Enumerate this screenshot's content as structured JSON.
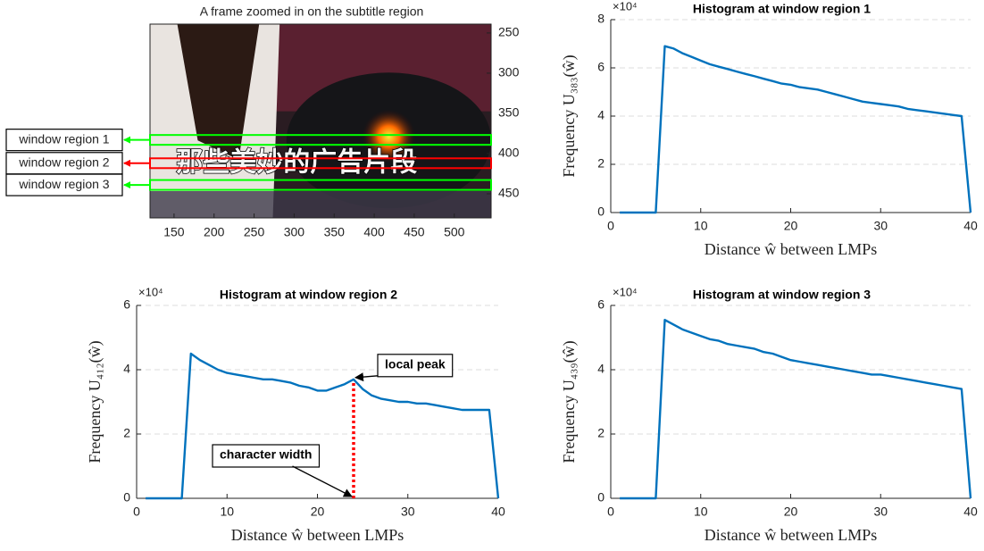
{
  "chart_data": [
    {
      "type": "image",
      "title": "A frame zoomed in on the subtitle region",
      "subtitle_text": "那些美妙的广告片段",
      "xlim": [
        120,
        546
      ],
      "ylim": [
        239,
        480
      ],
      "xticks": [
        150,
        200,
        250,
        300,
        350,
        400,
        450,
        500
      ],
      "yticks": [
        250,
        300,
        350,
        400,
        450
      ],
      "windows": [
        {
          "label": "window region 1",
          "y": 383,
          "color": "#00ff00"
        },
        {
          "label": "window region 2",
          "y": 412,
          "color": "#ff0000"
        },
        {
          "label": "window region 3",
          "y": 439,
          "color": "#00ff00"
        }
      ]
    },
    {
      "type": "line",
      "title": "Histogram at window region 1",
      "xlabel": "Distance ŵ between LMPs",
      "ylabel": "Frequency U₃₈₃(ŵ)",
      "y_multiplier": "×10⁴",
      "color": "#0072bd",
      "grid": true,
      "xlim": [
        0,
        40
      ],
      "ylim": [
        0,
        8
      ],
      "xticks": [
        0,
        10,
        20,
        30,
        40
      ],
      "yticks": [
        0,
        2,
        4,
        6,
        8
      ],
      "x": [
        1,
        2,
        3,
        4,
        5,
        6,
        7,
        8,
        9,
        10,
        11,
        12,
        13,
        14,
        15,
        16,
        17,
        18,
        19,
        20,
        21,
        22,
        23,
        24,
        25,
        26,
        27,
        28,
        29,
        30,
        31,
        32,
        33,
        34,
        35,
        36,
        37,
        38,
        39,
        40
      ],
      "values": [
        0,
        0,
        0,
        0,
        0,
        6.9,
        6.8,
        6.6,
        6.45,
        6.3,
        6.15,
        6.05,
        5.95,
        5.85,
        5.75,
        5.65,
        5.55,
        5.45,
        5.35,
        5.3,
        5.2,
        5.15,
        5.1,
        5.0,
        4.9,
        4.8,
        4.7,
        4.6,
        4.55,
        4.5,
        4.45,
        4.4,
        4.3,
        4.25,
        4.2,
        4.15,
        4.1,
        4.05,
        4.0,
        0
      ]
    },
    {
      "type": "line",
      "title": "Histogram at window region 2",
      "xlabel": "Distance ŵ between LMPs",
      "ylabel": "Frequency U₄₁₂(ŵ)",
      "y_multiplier": "×10⁴",
      "color": "#0072bd",
      "grid": true,
      "xlim": [
        0,
        40
      ],
      "ylim": [
        0,
        6
      ],
      "xticks": [
        0,
        10,
        20,
        30,
        40
      ],
      "yticks": [
        0,
        2,
        4,
        6
      ],
      "x": [
        1,
        2,
        3,
        4,
        5,
        6,
        7,
        8,
        9,
        10,
        11,
        12,
        13,
        14,
        15,
        16,
        17,
        18,
        19,
        20,
        21,
        22,
        23,
        24,
        25,
        26,
        27,
        28,
        29,
        30,
        31,
        32,
        33,
        34,
        35,
        36,
        37,
        38,
        39,
        40
      ],
      "values": [
        0,
        0,
        0,
        0,
        0,
        4.5,
        4.3,
        4.15,
        4.0,
        3.9,
        3.85,
        3.8,
        3.75,
        3.7,
        3.7,
        3.65,
        3.6,
        3.5,
        3.45,
        3.35,
        3.35,
        3.45,
        3.55,
        3.7,
        3.4,
        3.2,
        3.1,
        3.05,
        3.0,
        3.0,
        2.95,
        2.95,
        2.9,
        2.85,
        2.8,
        2.75,
        2.75,
        2.75,
        2.75,
        0
      ],
      "highlight_x": 24,
      "highlight_color": "#ff0000",
      "annotations": [
        "local peak",
        "character width"
      ]
    },
    {
      "type": "line",
      "title": "Histogram at window region 3",
      "xlabel": "Distance ŵ between LMPs",
      "ylabel": "Frequency U₄₃₉(ŵ)",
      "y_multiplier": "×10⁴",
      "color": "#0072bd",
      "grid": true,
      "xlim": [
        0,
        40
      ],
      "ylim": [
        0,
        6
      ],
      "xticks": [
        0,
        10,
        20,
        30,
        40
      ],
      "yticks": [
        0,
        2,
        4,
        6
      ],
      "x": [
        1,
        2,
        3,
        4,
        5,
        6,
        7,
        8,
        9,
        10,
        11,
        12,
        13,
        14,
        15,
        16,
        17,
        18,
        19,
        20,
        21,
        22,
        23,
        24,
        25,
        26,
        27,
        28,
        29,
        30,
        31,
        32,
        33,
        34,
        35,
        36,
        37,
        38,
        39,
        40
      ],
      "values": [
        0,
        0,
        0,
        0,
        0,
        5.55,
        5.4,
        5.25,
        5.15,
        5.05,
        4.95,
        4.9,
        4.8,
        4.75,
        4.7,
        4.65,
        4.55,
        4.5,
        4.4,
        4.3,
        4.25,
        4.2,
        4.15,
        4.1,
        4.05,
        4.0,
        3.95,
        3.9,
        3.85,
        3.85,
        3.8,
        3.75,
        3.7,
        3.65,
        3.6,
        3.55,
        3.5,
        3.45,
        3.4,
        0
      ]
    }
  ]
}
